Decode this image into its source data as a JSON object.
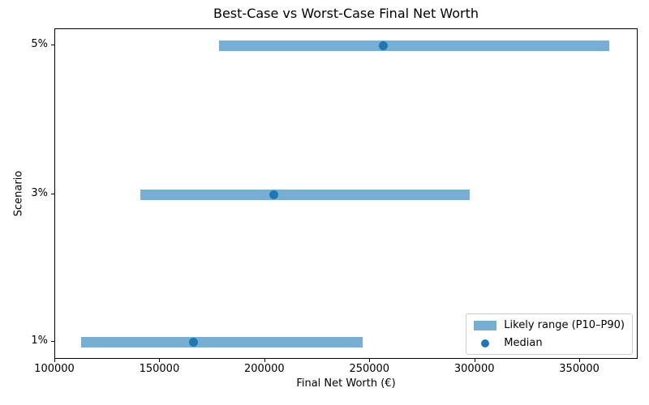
{
  "chart_data": {
    "type": "bar",
    "orientation": "horizontal",
    "title": "Best-Case vs Worst-Case Final Net Worth",
    "xlabel": "Final Net Worth (€)",
    "ylabel": "Scenario",
    "xlim": [
      100000,
      377000
    ],
    "x_ticks": [
      100000,
      150000,
      200000,
      250000,
      300000,
      350000
    ],
    "categories_top_to_bottom": [
      "5%",
      "3%",
      "1%"
    ],
    "rows": [
      {
        "scenario": "5%",
        "p10": 178000,
        "median": 256000,
        "p90": 364000
      },
      {
        "scenario": "3%",
        "p10": 140500,
        "median": 204000,
        "p90": 297500
      },
      {
        "scenario": "1%",
        "p10": 112300,
        "median": 165500,
        "p90": 246500
      }
    ],
    "legend": {
      "position": "lower right",
      "range_label": "Likely range (P10–P90)",
      "median_label": "Median"
    },
    "colors": {
      "bar": "#79AED3",
      "median": "#1F77B4",
      "spine": "#000000",
      "legend_border": "#CCCCCC"
    },
    "grid": false
  }
}
